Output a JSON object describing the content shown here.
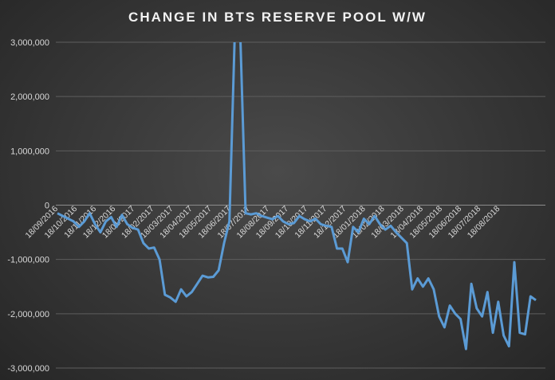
{
  "chart_data": {
    "type": "line",
    "title": "CHANGE IN BTS RESERVE POOL W/W",
    "xlabel": "",
    "ylabel": "",
    "ylim": [
      -3000000,
      3000000
    ],
    "yticks": [
      3000000,
      2000000,
      1000000,
      0,
      -1000000,
      -2000000,
      -3000000
    ],
    "ytick_labels": [
      "3,000,000",
      "2,000,000",
      "1,000,000",
      "0",
      "-1,000,000",
      "-2,000,000",
      "-3,000,000"
    ],
    "xtick_labels": [
      "18/09/2016",
      "18/10/2016",
      "18/11/2016",
      "18/12/2016",
      "18/01/2017",
      "18/02/2017",
      "18/03/2017",
      "18/04/2017",
      "18/05/2017",
      "18/06/2017",
      "18/07/2017",
      "18/08/2017",
      "18/09/2017",
      "18/10/2017",
      "18/11/2017",
      "18/12/2017",
      "18/01/2018",
      "18/02/2018",
      "18/03/2018",
      "18/04/2018",
      "18/05/2018",
      "18/06/2018",
      "18/07/2018",
      "18/08/2018"
    ],
    "grid": true,
    "line_color": "#5b9bd5",
    "series": [
      {
        "values": [
          -150000,
          -200000,
          -250000,
          -300000,
          -400000,
          -300000,
          -150000,
          -350000,
          -500000,
          -300000,
          -220000,
          -400000,
          -180000,
          -350000,
          -420000,
          -450000,
          -700000,
          -800000,
          -780000,
          -1000000,
          -1650000,
          -1700000,
          -1780000,
          -1550000,
          -1680000,
          -1600000,
          -1450000,
          -1300000,
          -1330000,
          -1320000,
          -1200000,
          -700000,
          -300000,
          3200000,
          3200000,
          -150000,
          -170000,
          -150000,
          -200000,
          -230000,
          -260000,
          -200000,
          -300000,
          -350000,
          -330000,
          -200000,
          -260000,
          -300000,
          -250000,
          -350000,
          -380000,
          -400000,
          -800000,
          -800000,
          -1050000,
          -400000,
          -500000,
          -250000,
          -350000,
          -200000,
          -350000,
          -450000,
          -380000,
          -500000,
          -600000,
          -700000,
          -1550000,
          -1350000,
          -1500000,
          -1350000,
          -1550000,
          -2050000,
          -2250000,
          -1850000,
          -2000000,
          -2100000,
          -2650000,
          -1450000,
          -1900000,
          -2050000,
          -1600000,
          -2350000,
          -1780000,
          -2400000,
          -2600000,
          -1050000,
          -2350000,
          -2380000,
          -1680000,
          -1750000
        ]
      }
    ]
  }
}
